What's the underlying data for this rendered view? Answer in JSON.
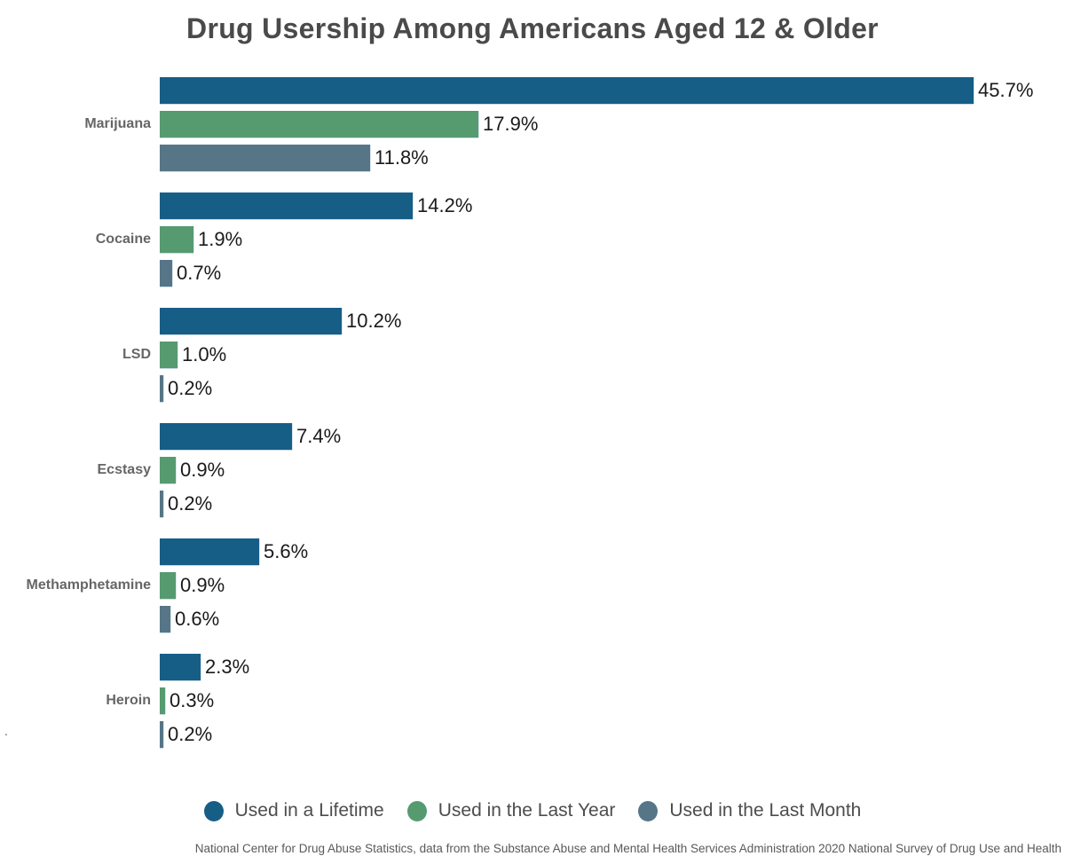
{
  "title": "Drug Usership Among Americans Aged 12 & Older",
  "footer": "National Center for Drug Abuse Statistics, data from the Substance Abuse and Mental Health Services Administration 2020 National Survey of Drug Use and Health",
  "stray_mark": ".",
  "colors": {
    "lifetime": "#175e87",
    "last_year": "#569a70",
    "last_month": "#567687",
    "bar_outline": "#c9dbe5",
    "title_text": "#4a4a4a",
    "category_text": "#666666",
    "value_text": "#1a1a1a",
    "legend_text": "#4d4d4d",
    "footer_text": "#595959"
  },
  "chart_data": {
    "type": "bar",
    "orientation": "horizontal",
    "title": "Drug Usership Among Americans Aged 12 & Older",
    "categories": [
      "Marijuana",
      "Cocaine",
      "LSD",
      "Ecstasy",
      "Methamphetamine",
      "Heroin"
    ],
    "series": [
      {
        "name": "Used in a Lifetime",
        "key": "lifetime",
        "color": "#175e87",
        "values": [
          45.7,
          14.2,
          10.2,
          7.4,
          5.6,
          2.3
        ]
      },
      {
        "name": "Used in the Last Year",
        "key": "last-year",
        "color": "#569a70",
        "values": [
          17.9,
          1.9,
          1.0,
          0.9,
          0.9,
          0.3
        ]
      },
      {
        "name": "Used in the Last Month",
        "key": "last-month",
        "color": "#567687",
        "values": [
          11.8,
          0.7,
          0.2,
          0.2,
          0.6,
          0.2
        ]
      }
    ],
    "value_suffix": "%",
    "value_decimals": 1,
    "xlim": [
      0,
      50.3
    ],
    "grid": false,
    "axis_ticks": "none",
    "legend_position": "bottom",
    "data_labels": true
  }
}
